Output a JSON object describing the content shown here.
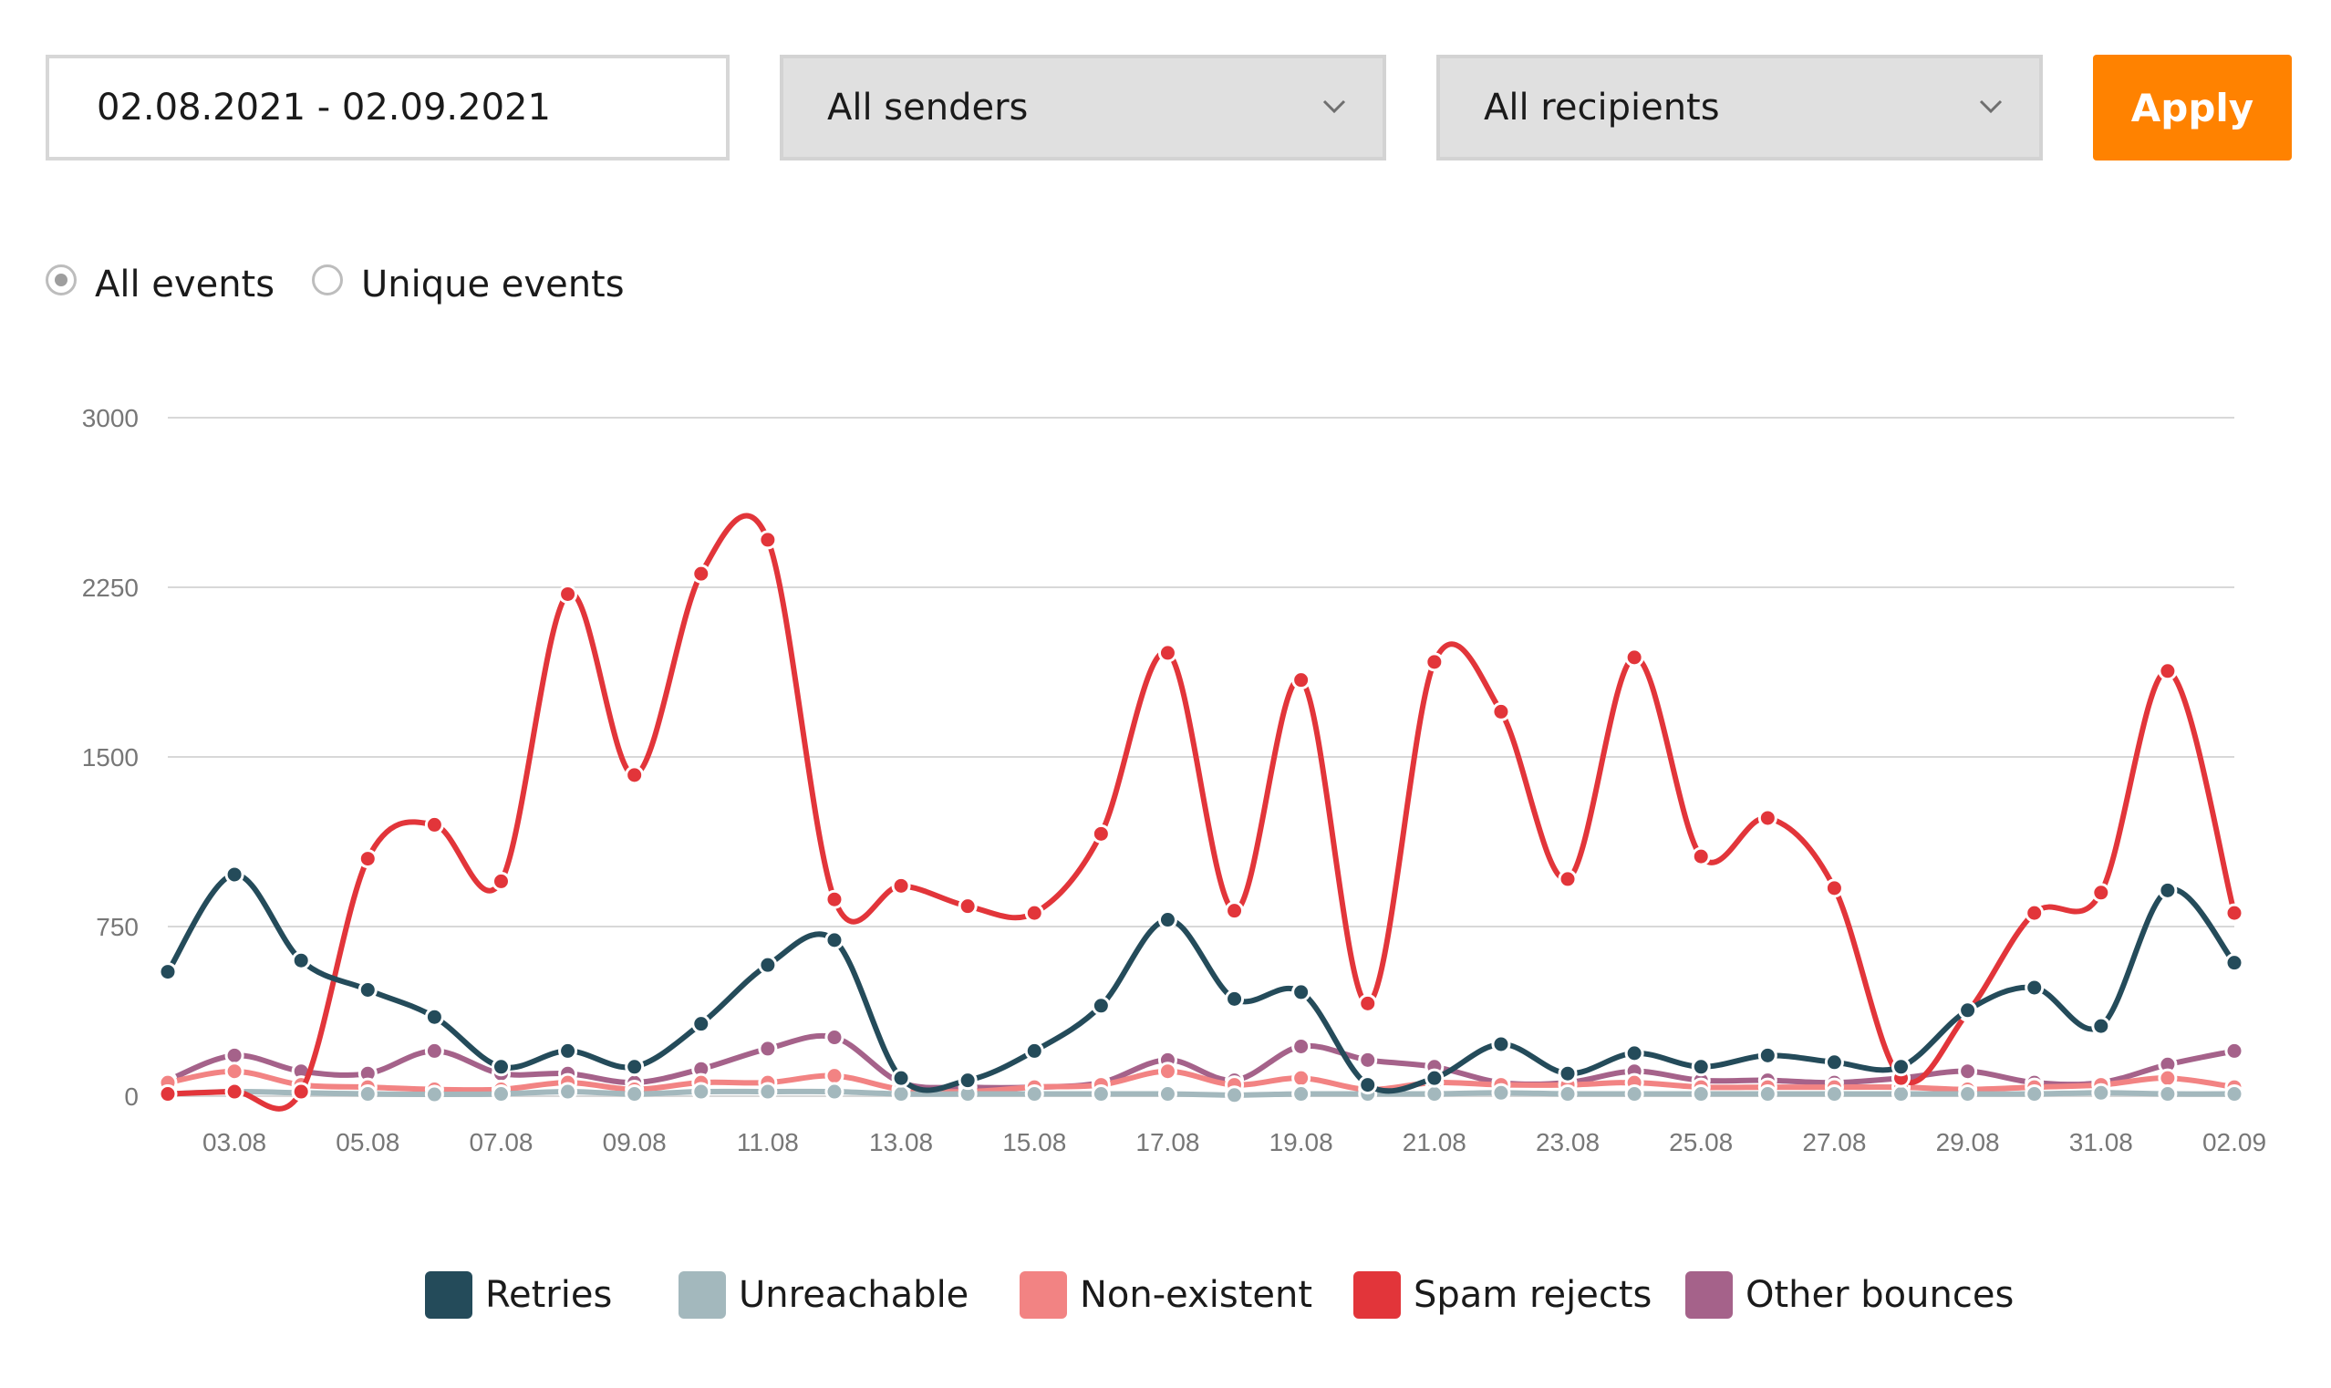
{
  "filters": {
    "date_range": "02.08.2021 - 02.09.2021",
    "senders": "All senders",
    "recipients": "All recipients",
    "apply_label": "Apply"
  },
  "mode": {
    "all_events": "All events",
    "unique_events": "Unique events",
    "selected": "all_events"
  },
  "colors": {
    "accent": "#ff8200",
    "retries": "#244b5a",
    "unreachable": "#a3b8bd",
    "nonexistent": "#f28383",
    "spam": "#e2353a",
    "other": "#a5628a",
    "grid": "#d8d8d8"
  },
  "chart_data": {
    "type": "line",
    "title": "",
    "xlabel": "",
    "ylabel": "",
    "ylim": [
      0,
      3000
    ],
    "yticks": [
      0,
      750,
      1500,
      2250,
      3000
    ],
    "grid": true,
    "legend_position": "bottom-center",
    "x": [
      "02.08",
      "03.08",
      "04.08",
      "05.08",
      "06.08",
      "07.08",
      "08.08",
      "09.08",
      "10.08",
      "11.08",
      "12.08",
      "13.08",
      "14.08",
      "15.08",
      "16.08",
      "17.08",
      "18.08",
      "19.08",
      "20.08",
      "21.08",
      "22.08",
      "23.08",
      "24.08",
      "25.08",
      "26.08",
      "27.08",
      "28.08",
      "29.08",
      "30.08",
      "31.08",
      "01.09",
      "02.09"
    ],
    "x_tick_labels": [
      "03.08",
      "05.08",
      "07.08",
      "09.08",
      "11.08",
      "13.08",
      "15.08",
      "17.08",
      "19.08",
      "21.08",
      "23.08",
      "25.08",
      "27.08",
      "29.08",
      "31.08",
      "02.09"
    ],
    "series": [
      {
        "name": "Retries",
        "color": "#244b5a",
        "values": [
          550,
          980,
          600,
          470,
          350,
          130,
          200,
          130,
          320,
          580,
          690,
          80,
          70,
          200,
          400,
          780,
          430,
          460,
          50,
          80,
          230,
          100,
          190,
          130,
          180,
          150,
          130,
          380,
          480,
          310,
          910,
          590
        ]
      },
      {
        "name": "Unreachable",
        "color": "#a3b8bd",
        "values": [
          10,
          20,
          15,
          10,
          8,
          10,
          20,
          10,
          20,
          20,
          20,
          10,
          10,
          10,
          10,
          10,
          5,
          10,
          10,
          10,
          15,
          10,
          10,
          10,
          10,
          10,
          10,
          10,
          10,
          15,
          10,
          10
        ]
      },
      {
        "name": "Non-existent",
        "color": "#f28383",
        "values": [
          60,
          110,
          50,
          40,
          30,
          30,
          60,
          30,
          60,
          60,
          90,
          30,
          20,
          40,
          50,
          110,
          50,
          80,
          30,
          60,
          50,
          50,
          60,
          40,
          40,
          40,
          40,
          30,
          40,
          50,
          80,
          40
        ]
      },
      {
        "name": "Spam rejects",
        "color": "#e2353a",
        "values": [
          10,
          20,
          20,
          1050,
          1200,
          950,
          2220,
          1420,
          2310,
          2460,
          870,
          930,
          840,
          810,
          1160,
          1960,
          820,
          1840,
          410,
          1920,
          1700,
          960,
          1940,
          1060,
          1230,
          920,
          80,
          370,
          810,
          900,
          1880,
          810
        ]
      },
      {
        "name": "Other bounces",
        "color": "#a5628a",
        "values": [
          70,
          180,
          110,
          100,
          200,
          100,
          100,
          60,
          120,
          210,
          260,
          60,
          40,
          40,
          60,
          160,
          70,
          220,
          160,
          130,
          60,
          60,
          110,
          70,
          70,
          60,
          80,
          110,
          60,
          60,
          140,
          200
        ]
      }
    ]
  }
}
